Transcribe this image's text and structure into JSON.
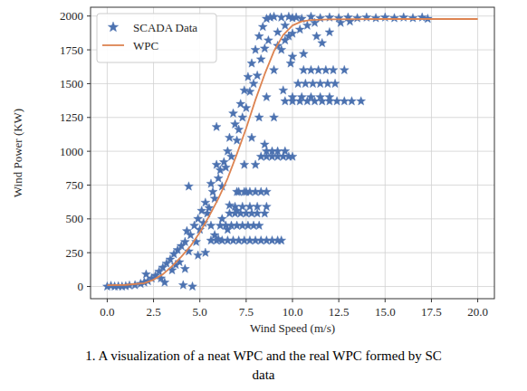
{
  "chart_data": {
    "type": "scatter",
    "x_label": "Wind Speed (m/s)",
    "y_label": "Wind Power (KW)",
    "caption": [
      "1. A visualization of a neat WPC and the real WPC formed by SC",
      "data"
    ],
    "xlim": [
      -0.9,
      20.9
    ],
    "ylim": [
      -90,
      2065
    ],
    "xticks": [
      {
        "value": 0,
        "label": "0.0"
      },
      2.5,
      {
        "value": 5,
        "label": "5.0"
      },
      7.5,
      {
        "value": 10,
        "label": "10.0"
      },
      12.5,
      {
        "value": 15,
        "label": "15.0"
      },
      17.5,
      {
        "value": 20,
        "label": "20.0"
      }
    ],
    "yticks": [
      0,
      250,
      500,
      750,
      1000,
      1250,
      1500,
      1750,
      2000
    ],
    "grid": true,
    "legend": "upper left",
    "series": [
      {
        "name": "SCADA Data",
        "type": "scatter",
        "marker": "star",
        "color": "#4c72b0",
        "x": [
          0,
          0.2,
          0.4,
          0.6,
          0.8,
          1,
          1.2,
          1.5,
          1.8,
          2,
          2.2,
          2.1,
          2.4,
          2.6,
          2.8,
          3,
          2.9,
          3.2,
          3.4,
          3.1,
          3.6,
          3.8,
          3.5,
          4,
          4.2,
          4.4,
          3.9,
          4.1,
          4.6,
          4.3,
          4.5,
          4.7,
          4.9,
          5,
          5.1,
          4.8,
          5.3,
          5.5,
          5.2,
          5.7,
          5.4,
          5.6,
          5.8,
          6,
          6.1,
          5.9,
          6.3,
          6.2,
          6.5,
          6.4,
          6.6,
          6.7,
          6.9,
          7,
          6.8,
          7.2,
          7.1,
          7.4,
          7.3,
          7.6,
          7.5,
          7.8,
          7.7,
          8,
          7.9,
          8.2,
          8.1,
          8.4,
          8.3,
          8.6,
          8.5,
          8.8,
          8.7,
          9,
          9.2,
          9.4,
          9.6,
          9.8,
          10,
          10.2,
          10.5,
          11,
          11.5,
          12,
          12.5,
          13,
          13.5,
          14,
          14.5,
          15,
          15.5,
          16,
          16.5,
          17,
          17.3,
          6.2,
          6.6,
          7,
          7.4,
          7.8,
          8.2,
          8.6,
          9,
          9.4,
          9.8,
          6,
          6.5,
          7,
          7.5,
          8,
          8.5,
          9,
          9.5,
          10,
          5.3,
          5.8,
          4.2,
          3.7,
          4.9,
          5.6,
          5.6,
          5.9,
          6.2,
          6.5,
          6.8,
          7.1,
          7.4,
          7.7,
          8,
          8.3,
          8.6,
          8.9,
          9.2,
          9.4,
          6.1,
          6.4,
          6.7,
          7,
          7.3,
          7.6,
          7.9,
          8.2,
          6.6,
          6.9,
          7.2,
          7.5,
          7.8,
          8.1,
          8.5,
          6.9,
          7.3,
          7.7,
          8.1,
          8.6,
          7.1,
          7.4,
          7.7,
          8,
          8.3,
          8.6,
          8.3,
          8.6,
          8.9,
          9.2,
          9.5,
          9.8,
          10,
          8.6,
          8.9,
          9.2,
          9.6,
          9.6,
          10,
          10.4,
          10.8,
          11.2,
          11.6,
          12,
          12.4,
          12.8,
          13.2,
          13.7,
          10,
          10.5,
          11,
          11.5,
          12,
          10.3,
          10.7,
          11.1,
          11.5,
          11.9,
          12.3,
          10.6,
          11,
          11.4,
          11.8,
          12.2,
          12.8,
          9.2,
          9.6,
          10,
          10.4,
          10.8,
          11.2,
          11.6,
          12,
          12.6,
          13.1,
          9.9,
          10.6,
          11.3,
          4.4,
          5.9
        ],
        "values": [
          0,
          5,
          0,
          2,
          0,
          3,
          8,
          10,
          20,
          30,
          40,
          90,
          60,
          80,
          110,
          140,
          60,
          170,
          200,
          30,
          240,
          270,
          120,
          300,
          330,
          260,
          180,
          10,
          0,
          410,
          380,
          450,
          500,
          420,
          560,
          330,
          620,
          580,
          470,
          700,
          540,
          760,
          650,
          800,
          860,
          900,
          920,
          740,
          1000,
          880,
          1100,
          960,
          1200,
          1080,
          1280,
          1350,
          1160,
          1450,
          1250,
          1550,
          1320,
          1650,
          1440,
          1750,
          1500,
          1850,
          1560,
          1920,
          1680,
          1980,
          1760,
          1990,
          1820,
          1995,
          1880,
          1990,
          1930,
          1995,
          1985,
          1990,
          1980,
          1995,
          1985,
          1990,
          1985,
          1990,
          1985,
          1990,
          1985,
          1990,
          1985,
          1990,
          1985,
          1990,
          1980,
          500,
          600,
          700,
          900,
          1100,
          1250,
          1400,
          1600,
          1750,
          1850,
          350,
          420,
          560,
          700,
          900,
          1050,
          1250,
          1450,
          1700,
          250,
          380,
          130,
          160,
          230,
          450,
          340,
          340,
          340,
          340,
          340,
          340,
          340,
          340,
          340,
          340,
          340,
          340,
          340,
          340,
          450,
          450,
          450,
          450,
          450,
          450,
          450,
          450,
          540,
          540,
          540,
          540,
          540,
          540,
          540,
          590,
          590,
          590,
          590,
          590,
          700,
          700,
          700,
          700,
          700,
          700,
          960,
          960,
          960,
          960,
          960,
          960,
          960,
          1000,
          1000,
          1000,
          1000,
          1370,
          1370,
          1370,
          1370,
          1370,
          1370,
          1370,
          1370,
          1370,
          1370,
          1370,
          1400,
          1400,
          1400,
          1400,
          1400,
          1500,
          1500,
          1500,
          1500,
          1500,
          1500,
          1600,
          1600,
          1600,
          1600,
          1600,
          1600,
          1780,
          1820,
          1870,
          1900,
          1930,
          1950,
          1800,
          1880,
          1950,
          1960,
          1650,
          1720,
          1850,
          740,
          1180
        ]
      },
      {
        "name": "WPC",
        "type": "line",
        "color": "#dd8452",
        "x": [
          0,
          1,
          2,
          2.5,
          3,
          3.5,
          4,
          4.5,
          5,
          5.5,
          6,
          6.5,
          7,
          7.5,
          8,
          8.5,
          9,
          9.5,
          10,
          10.5,
          11,
          12,
          15,
          20
        ],
        "values": [
          10,
          12,
          25,
          50,
          90,
          150,
          220,
          300,
          400,
          520,
          650,
          800,
          980,
          1170,
          1380,
          1570,
          1740,
          1860,
          1930,
          1960,
          1970,
          1975,
          1978,
          1978
        ]
      }
    ]
  }
}
